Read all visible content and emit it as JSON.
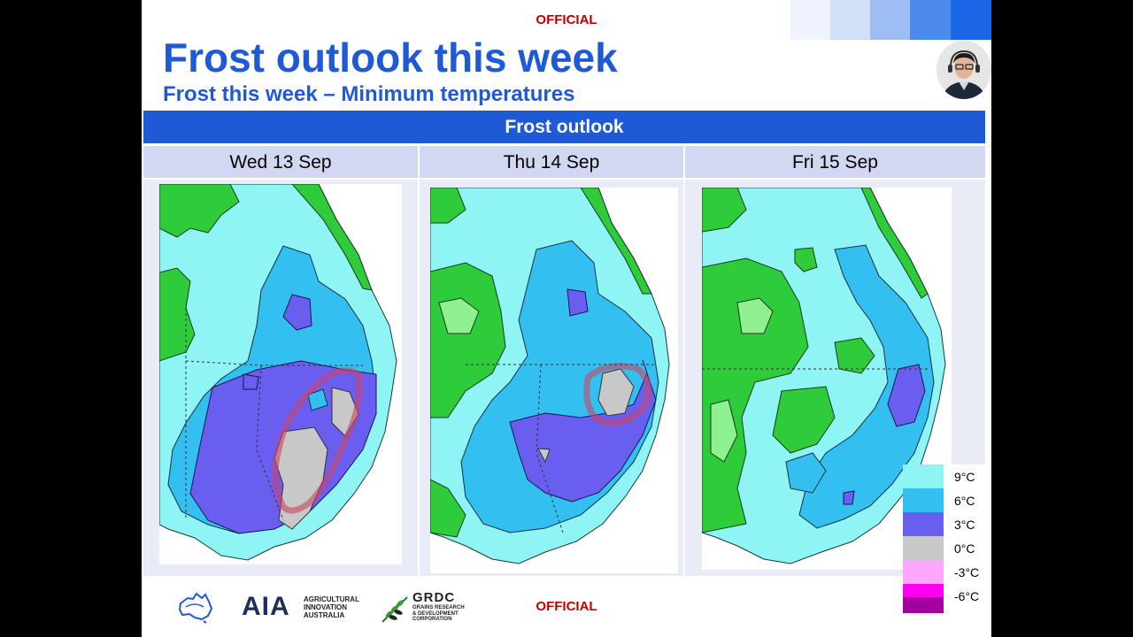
{
  "header": {
    "official_top": "OFFICIAL",
    "title": "Frost outlook this week",
    "subtitle": "Frost this week – Minimum temperatures"
  },
  "banner": {
    "label": "Frost outlook"
  },
  "days": [
    {
      "label": "Wed 13 Sep"
    },
    {
      "label": "Thu 14 Sep"
    },
    {
      "label": "Fri 15 Sep"
    }
  ],
  "legend": {
    "items": [
      {
        "label": "9°C",
        "color": "#8ef4f4"
      },
      {
        "label": "6°C",
        "color": "#33c0f0"
      },
      {
        "label": "3°C",
        "color": "#6a5ef0"
      },
      {
        "label": "0°C",
        "color": "#c8c8c8"
      },
      {
        "label": "-3°C",
        "color": "#ffa6ff"
      },
      {
        "label": "-6°C",
        "color": "#ff00ee"
      },
      {
        "label": "",
        "color": "#a000a0"
      }
    ]
  },
  "footer": {
    "official_bottom": "OFFICIAL",
    "aia_mark": "AIA",
    "aia_line1": "AGRICULTURAL",
    "aia_line2": "INNOVATION",
    "aia_line3": "AUSTRALIA",
    "grdc_mark": "GRDC",
    "grdc_line1": "GRAINS RESEARCH",
    "grdc_line2": "& DEVELOPMENT",
    "grdc_line3": "CORPORATION"
  },
  "icons": {
    "avatar": "presenter-avatar",
    "australia_logo": "australia-map-icon",
    "grdc_logo": "wheat-icon"
  }
}
